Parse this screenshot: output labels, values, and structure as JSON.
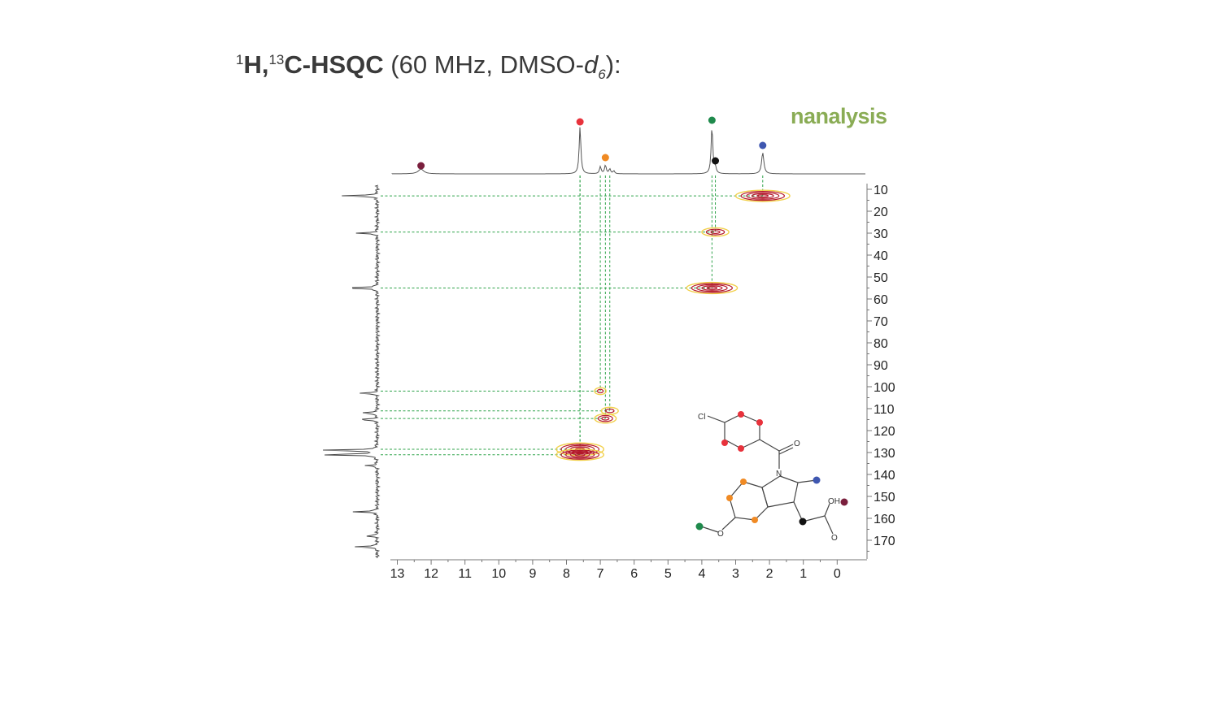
{
  "header": {
    "title_bold": "H,",
    "sup_h": "1",
    "sup_c": "13",
    "title_bold2": "C-HSQC",
    "title_rest": " (60 MHz, DMSO-",
    "title_d": "d",
    "title_sub": "6",
    "title_end": "):"
  },
  "brand": {
    "logo_text": "nanalysis"
  },
  "colors": {
    "dark_red": "#7a1f3d",
    "red": "#e8323c",
    "orange": "#f08a24",
    "green": "#1f8a4c",
    "black": "#111111",
    "blue": "#3f57b0",
    "guide": "#2fa34a",
    "contour_outer": "#f2d04a",
    "contour_inner": "#b4182a"
  },
  "chart_data": {
    "type": "heatmap",
    "x_axis": {
      "min": 13,
      "max": 0,
      "ticks": [
        "13",
        "12",
        "11",
        "10",
        "9",
        "8",
        "7",
        "6",
        "5",
        "4",
        "3",
        "2",
        "1",
        "0"
      ]
    },
    "y_axis": {
      "min": 10,
      "max": 170,
      "ticks": [
        "10",
        "20",
        "30",
        "40",
        "50",
        "60",
        "70",
        "80",
        "90",
        "100",
        "110",
        "120",
        "130",
        "140",
        "150",
        "160",
        "170"
      ]
    },
    "proton_peaks": [
      {
        "shift": 12.3,
        "height": 0.1,
        "width": 0.1,
        "marker": "dark_red"
      },
      {
        "shift": 7.6,
        "height": 1.0,
        "width": 0.03,
        "marker": "red"
      },
      {
        "shift": 7.0,
        "height": 0.15,
        "width": 0.03,
        "marker": ""
      },
      {
        "shift": 6.85,
        "height": 0.18,
        "width": 0.03,
        "marker": "orange"
      },
      {
        "shift": 6.72,
        "height": 0.1,
        "width": 0.03,
        "marker": ""
      },
      {
        "shift": 6.6,
        "height": 0.06,
        "width": 0.03,
        "marker": ""
      },
      {
        "shift": 3.7,
        "height": 1.0,
        "width": 0.03,
        "marker": "green"
      },
      {
        "shift": 3.6,
        "height": 0.12,
        "width": 0.03,
        "marker": "black"
      },
      {
        "shift": 2.2,
        "height": 0.45,
        "width": 0.04,
        "marker": "blue"
      }
    ],
    "carbon_peaks": [
      {
        "shift": 13,
        "height": 0.6
      },
      {
        "shift": 30,
        "height": 0.35
      },
      {
        "shift": 55,
        "height": 0.62
      },
      {
        "shift": 103,
        "height": 0.3
      },
      {
        "shift": 112,
        "height": 0.32
      },
      {
        "shift": 115,
        "height": 0.34
      },
      {
        "shift": 129,
        "height": 1.0
      },
      {
        "shift": 131,
        "height": 1.0
      },
      {
        "shift": 136,
        "height": 0.2
      },
      {
        "shift": 157,
        "height": 0.4
      },
      {
        "shift": 168,
        "height": 0.2
      },
      {
        "shift": 173,
        "height": 0.4
      }
    ],
    "cross_peaks": [
      {
        "h": 2.2,
        "c": 13,
        "rx": 0.8,
        "ry": 1.6,
        "strength": 1.0
      },
      {
        "h": 3.6,
        "c": 29.5,
        "rx": 0.4,
        "ry": 1.2,
        "strength": 0.6
      },
      {
        "h": 3.7,
        "c": 55,
        "rx": 0.75,
        "ry": 1.6,
        "strength": 1.0
      },
      {
        "h": 7.0,
        "c": 102,
        "rx": 0.17,
        "ry": 1.0,
        "strength": 0.3
      },
      {
        "h": 6.72,
        "c": 111,
        "rx": 0.25,
        "ry": 1.0,
        "strength": 0.35
      },
      {
        "h": 6.85,
        "c": 114.5,
        "rx": 0.32,
        "ry": 1.3,
        "strength": 0.5
      },
      {
        "h": 7.6,
        "c": 128.5,
        "rx": 0.7,
        "ry": 1.8,
        "strength": 1.0
      },
      {
        "h": 7.6,
        "c": 131,
        "rx": 0.7,
        "ry": 1.6,
        "strength": 1.0
      }
    ],
    "guides": [
      {
        "h": 2.2,
        "c": 13
      },
      {
        "h": 3.6,
        "c": 29.5
      },
      {
        "h": 3.7,
        "c": 55
      },
      {
        "h": 7.0,
        "c": 102
      },
      {
        "h": 6.72,
        "c": 111
      },
      {
        "h": 6.85,
        "c": 114.5
      },
      {
        "h": 7.6,
        "c": 128.5
      },
      {
        "h": 7.6,
        "c": 131
      }
    ]
  },
  "structure": {
    "labels": {
      "cl": "Cl",
      "o_ketone": "O",
      "n": "N",
      "oh": "OH",
      "o_acid": "O",
      "o_ether": "O"
    }
  }
}
